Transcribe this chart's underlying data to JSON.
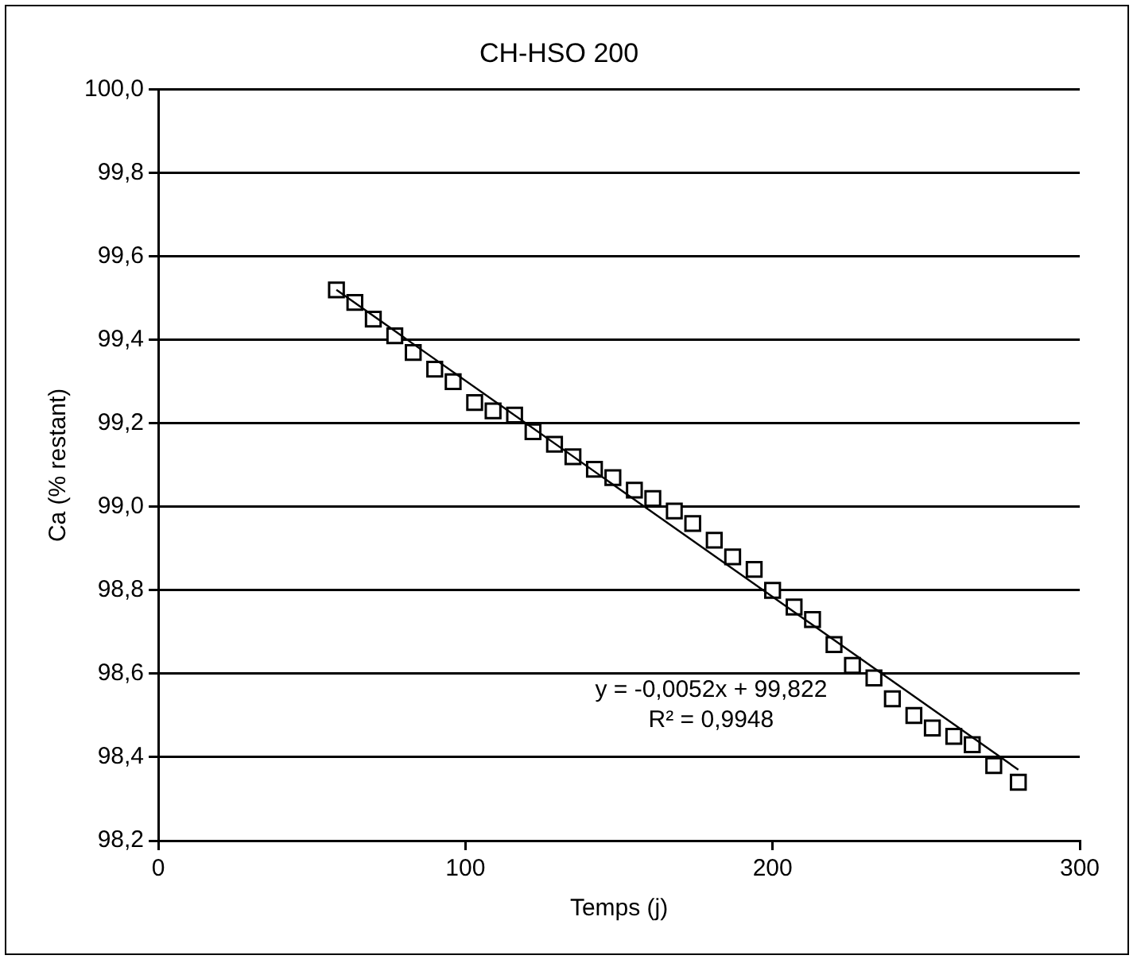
{
  "chart_data": {
    "type": "scatter",
    "title": "CH-HSO 200",
    "xlabel": "Temps (j)",
    "ylabel": "Ca (% restant)",
    "xlim": [
      0,
      300
    ],
    "xticks": [
      0,
      100,
      200,
      300
    ],
    "ylim": [
      98.2,
      100.0
    ],
    "yticks": [
      {
        "value": 98.2,
        "label": "98,2"
      },
      {
        "value": 98.4,
        "label": "98,4"
      },
      {
        "value": 98.6,
        "label": "98,6"
      },
      {
        "value": 98.8,
        "label": "98,8"
      },
      {
        "value": 99.0,
        "label": "99,0"
      },
      {
        "value": 99.2,
        "label": "99,2"
      },
      {
        "value": 99.4,
        "label": "99,4"
      },
      {
        "value": 99.6,
        "label": "99,6"
      },
      {
        "value": 99.8,
        "label": "99,8"
      },
      {
        "value": 100.0,
        "label": "100,0"
      }
    ],
    "grid": "y",
    "legend": false,
    "series": [
      {
        "type": "scatter",
        "marker": "square",
        "color": "#000000",
        "x": [
          58,
          64,
          70,
          77,
          83,
          90,
          96,
          103,
          109,
          116,
          122,
          129,
          135,
          142,
          148,
          155,
          161,
          168,
          174,
          181,
          187,
          194,
          200,
          207,
          213,
          220,
          226,
          233,
          239,
          246,
          252,
          259,
          265,
          272,
          280
        ],
        "values": [
          99.52,
          99.49,
          99.45,
          99.41,
          99.37,
          99.33,
          99.3,
          99.25,
          99.23,
          99.22,
          99.18,
          99.15,
          99.12,
          99.09,
          99.07,
          99.04,
          99.02,
          98.99,
          98.96,
          98.92,
          98.88,
          98.85,
          98.8,
          98.76,
          98.73,
          98.67,
          98.62,
          98.59,
          98.54,
          98.5,
          98.47,
          98.45,
          98.43,
          98.38,
          98.34
        ]
      },
      {
        "type": "line",
        "marker": "none",
        "line_style": "solid",
        "color": "#000000",
        "x": [
          58,
          280
        ],
        "values": [
          99.52,
          98.37
        ]
      }
    ],
    "annotations": [
      "y = -0,0052x + 99,822",
      "R² = 0,9948"
    ]
  }
}
